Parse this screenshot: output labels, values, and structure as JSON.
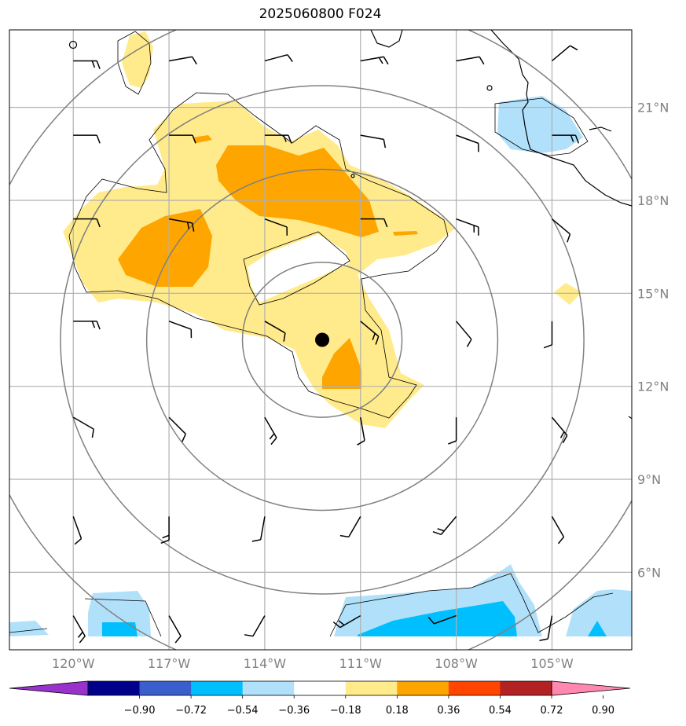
{
  "title": "2025060800 F024",
  "map": {
    "extent": {
      "lon_min": -122,
      "lon_max": -102.5,
      "lat_min": 3.5,
      "lat_max": 23.5
    },
    "lon_ticks": [
      {
        "value": -120,
        "label": "120°W"
      },
      {
        "value": -117,
        "label": "117°W"
      },
      {
        "value": -114,
        "label": "114°W"
      },
      {
        "value": -111,
        "label": "111°W"
      },
      {
        "value": -108,
        "label": "108°W"
      },
      {
        "value": -105,
        "label": "105°W"
      }
    ],
    "lat_ticks": [
      {
        "value": 21,
        "label": "21°N"
      },
      {
        "value": 18,
        "label": "18°N"
      },
      {
        "value": 15,
        "label": "15°N"
      },
      {
        "value": 12,
        "label": "12°N"
      },
      {
        "value": 9,
        "label": "9°N"
      },
      {
        "value": 6,
        "label": "6°N"
      }
    ],
    "storm_center": {
      "lon": -112.2,
      "lat": 13.5
    },
    "range_rings_deg": [
      2.5,
      5.5,
      8.2,
      11.0
    ],
    "grid_color": "#b0b0b0",
    "ring_color": "#808080"
  },
  "colorbar": {
    "colors": [
      "#9932cc",
      "#00008b",
      "#3a5fcd",
      "#00bfff",
      "#b0e0fa",
      "#ffffff",
      "#ffeb8c",
      "#ffa500",
      "#ff4500",
      "#b22222",
      "#ff88b0"
    ],
    "labels": [
      "−0.90",
      "−0.72",
      "−0.54",
      "−0.36",
      "−0.18",
      "0.18",
      "0.36",
      "0.54",
      "0.72",
      "0.90"
    ]
  },
  "legend_colors": {
    "light_yellow": "#ffeb8c",
    "orange": "#ffa500",
    "light_blue": "#b0e0fa",
    "deep_sky_blue": "#00bfff"
  }
}
